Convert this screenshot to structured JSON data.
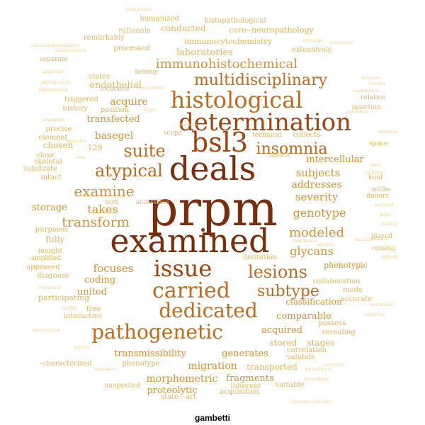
{
  "caption": "gambetti",
  "palette": [
    "#7a2d0a",
    "#a0420d",
    "#c06a1d",
    "#d99031",
    "#e9b35a",
    "#f3cf88"
  ],
  "words": [
    {
      "text": "prpm",
      "tier": 0
    },
    {
      "text": "examined",
      "tier": 0
    },
    {
      "text": "deals",
      "tier": 0
    },
    {
      "text": "issue",
      "tier": 1
    },
    {
      "text": "bsl3",
      "tier": 1
    },
    {
      "text": "carried",
      "tier": 2
    },
    {
      "text": "determination",
      "tier": 1
    },
    {
      "text": "histological",
      "tier": 2
    },
    {
      "text": "dedicated",
      "tier": 2
    },
    {
      "text": "pathogenetic",
      "tier": 2
    },
    {
      "text": "lesions",
      "tier": 2
    },
    {
      "text": "subtype",
      "tier": 2
    },
    {
      "text": "atypical",
      "tier": 2
    },
    {
      "text": "suite",
      "tier": 2
    },
    {
      "text": "insomnia",
      "tier": 2
    },
    {
      "text": "multidisciplinary",
      "tier": 2
    },
    {
      "text": "immunohistochemical",
      "tier": 3
    },
    {
      "text": "examine",
      "tier": 3
    },
    {
      "text": "transform",
      "tier": 3
    },
    {
      "text": "modeled",
      "tier": 3
    },
    {
      "text": "genotype",
      "tier": 3
    },
    {
      "text": "glycans",
      "tier": 3
    },
    {
      "text": "takes",
      "tier": 3
    },
    {
      "text": "focuses",
      "tier": 3
    },
    {
      "text": "severity",
      "tier": 3
    },
    {
      "text": "subjects",
      "tier": 3
    },
    {
      "text": "addresses",
      "tier": 3
    },
    {
      "text": "acquire",
      "tier": 3
    },
    {
      "text": "transfected",
      "tier": 3
    },
    {
      "text": "basegel",
      "tier": 3
    },
    {
      "text": "intercellular",
      "tier": 3
    },
    {
      "text": "storage",
      "tier": 3
    },
    {
      "text": "coding",
      "tier": 3
    },
    {
      "text": "united",
      "tier": 3
    },
    {
      "text": "phenotypic",
      "tier": 3
    },
    {
      "text": "comparable",
      "tier": 3
    },
    {
      "text": "acquired",
      "tier": 3
    },
    {
      "text": "classification",
      "tier": 3
    },
    {
      "text": "transmissibility",
      "tier": 3
    },
    {
      "text": "generates",
      "tier": 3
    },
    {
      "text": "migration",
      "tier": 3
    },
    {
      "text": "morphometric",
      "tier": 3
    },
    {
      "text": "fragments",
      "tier": 3
    },
    {
      "text": "proteolytic",
      "tier": 3
    },
    {
      "text": "stored",
      "tier": 4
    },
    {
      "text": "stages",
      "tier": 4
    },
    {
      "text": "transported",
      "tier": 4
    },
    {
      "text": "endothelial",
      "tier": 4
    },
    {
      "text": "laboratories",
      "tier": 4
    },
    {
      "text": "immunocytochemistry",
      "tier": 4
    },
    {
      "text": "core--neuropathology",
      "tier": 4
    },
    {
      "text": "conducted",
      "tier": 4
    },
    {
      "text": "humanized",
      "tier": 4
    },
    {
      "text": "histopathological",
      "tier": 4
    },
    {
      "text": "rationale",
      "tier": 4
    },
    {
      "text": "remarkably",
      "tier": 4
    },
    {
      "text": "processed",
      "tier": 4
    },
    {
      "text": "extensively",
      "tier": 4
    },
    {
      "text": "states",
      "tier": 4
    },
    {
      "text": "triggered",
      "tier": 4
    },
    {
      "text": "history",
      "tier": 4
    },
    {
      "text": "position",
      "tier": 4
    },
    {
      "text": "precise",
      "tier": 4
    },
    {
      "text": "element",
      "tier": 4
    },
    {
      "text": "chosen",
      "tier": 4
    },
    {
      "text": "129",
      "tier": 4
    },
    {
      "text": "close",
      "tier": 4
    },
    {
      "text": "skeletal",
      "tier": 4
    },
    {
      "text": "substrate",
      "tier": 4
    },
    {
      "text": "intact",
      "tier": 4
    },
    {
      "text": "purposes",
      "tier": 4
    },
    {
      "text": "fully",
      "tier": 4
    },
    {
      "text": "insight",
      "tier": 4
    },
    {
      "text": "approved",
      "tier": 4
    },
    {
      "text": "diagnose",
      "tier": 4
    },
    {
      "text": "participating",
      "tier": 4
    },
    {
      "text": "free",
      "tier": 4
    },
    {
      "text": "interactive",
      "tier": 4
    },
    {
      "text": "possess",
      "tier": 4
    },
    {
      "text": "revealing",
      "tier": 4
    },
    {
      "text": "correlation",
      "tier": 4
    },
    {
      "text": "validate",
      "tier": 4
    },
    {
      "text": "inherent",
      "tier": 4
    },
    {
      "text": "acquisition",
      "tier": 4
    },
    {
      "text": "variable",
      "tier": 4
    },
    {
      "text": "suspected",
      "tier": 4
    },
    {
      "text": "state---art",
      "tier": 4
    },
    {
      "text": "-characterized",
      "tier": 4
    },
    {
      "text": "phenotype",
      "tier": 4
    },
    {
      "text": "collaboration",
      "tier": 4
    },
    {
      "text": "mode",
      "tier": 4
    },
    {
      "text": "accurate",
      "tier": 4
    },
    {
      "text": "limitation",
      "tier": 4
    },
    {
      "text": "coming",
      "tier": 4
    },
    {
      "text": "played",
      "tier": 4
    },
    {
      "text": "willbe",
      "tier": 4
    },
    {
      "text": "donors",
      "tier": 4
    },
    {
      "text": "kind",
      "tier": 4
    },
    {
      "text": "space",
      "tier": 4
    },
    {
      "text": "relation",
      "tier": 4
    },
    {
      "text": "insertion",
      "tier": 4
    },
    {
      "text": "collects",
      "tier": 4
    },
    {
      "text": "technical",
      "tier": 4
    },
    {
      "text": "scope",
      "tier": 4
    },
    {
      "text": "match",
      "tier": 4
    },
    {
      "text": "turn",
      "tier": 4
    },
    {
      "text": "accessible",
      "tier": 4
    },
    {
      "text": "amplified",
      "tier": 4
    },
    {
      "text": "belong",
      "tier": 4
    },
    {
      "text": "locations",
      "tier": 4
    },
    {
      "text": "separate",
      "tier": 4
    },
    {
      "text": "comparative",
      "tier": 5
    },
    {
      "text": "characteristics",
      "tier": 5
    },
    {
      "text": "overcome",
      "tier": 5
    },
    {
      "text": "immunohistochemistry",
      "tier": 5
    },
    {
      "text": "applicable",
      "tier": 5
    },
    {
      "text": "pathogenicity",
      "tier": 5
    },
    {
      "text": "differentiated",
      "tier": 5
    },
    {
      "text": "advantage",
      "tier": 5
    },
    {
      "text": "amenable",
      "tier": 5
    },
    {
      "text": "aims",
      "tier": 5
    },
    {
      "text": "continuous",
      "tier": 5
    },
    {
      "text": "database",
      "tier": 5
    },
    {
      "text": "oversee",
      "tier": 5
    },
    {
      "text": "examination",
      "tier": 5
    },
    {
      "text": "degradation",
      "tier": 5
    },
    {
      "text": "buyer",
      "tier": 5
    },
    {
      "text": "barriers",
      "tier": 5
    },
    {
      "text": "inherited",
      "tier": 5
    },
    {
      "text": "store",
      "tier": 5
    },
    {
      "text": "includes",
      "tier": 5
    },
    {
      "text": "analyzed",
      "tier": 5
    },
    {
      "text": "prpsc-",
      "tier": 5
    },
    {
      "text": "making",
      "tier": 5
    },
    {
      "text": "distribution",
      "tier": 5
    },
    {
      "text": "circular",
      "tier": 5
    },
    {
      "text": "pattern",
      "tier": 5
    },
    {
      "text": "advance",
      "tier": 5
    },
    {
      "text": "difficult",
      "tier": 5
    },
    {
      "text": "fragment",
      "tier": 5
    },
    {
      "text": "requested",
      "tier": 5
    },
    {
      "text": "readily",
      "tier": 5
    },
    {
      "text": "extracellular",
      "tier": 5
    },
    {
      "text": "expertise",
      "tier": 5
    },
    {
      "text": "correlated",
      "tier": 5
    },
    {
      "text": "patient",
      "tier": 5
    },
    {
      "text": "beta-sheet",
      "tier": 5
    },
    {
      "text": "surveillance",
      "tier": 5
    },
    {
      "text": "constructs",
      "tier": 5
    },
    {
      "text": "phenotypes",
      "tier": 5
    },
    {
      "text": "protease-resistant",
      "tier": 5
    },
    {
      "text": "individual",
      "tier": 5
    }
  ]
}
